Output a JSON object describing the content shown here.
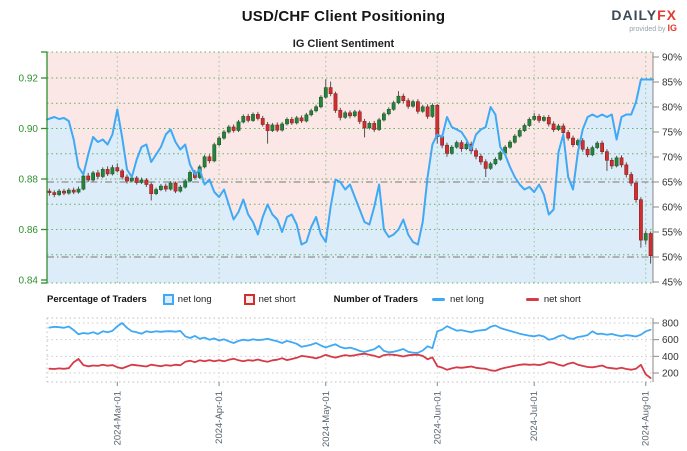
{
  "header": {
    "title": "USD/CHF Client Positioning",
    "subtitle": "IG Client Sentiment"
  },
  "brand": {
    "name_dark": "DAILY",
    "name_accent": "FX",
    "provided_by": "provided by",
    "provider": "IG"
  },
  "legend": {
    "percentage_heading": "Percentage of Traders",
    "pct_net_long": "net long",
    "pct_net_short": "net short",
    "number_heading": "Number of Traders",
    "num_net_long": "net long",
    "num_net_short": "net short"
  },
  "colors": {
    "sentiment_line": "#3fa9f5",
    "fill_above": "#fbe7e6",
    "fill_below": "#dcecf8",
    "candle_up_fill": "#27823c",
    "candle_up_stroke": "#1a5c2a",
    "candle_down_fill": "#d02f2f",
    "candle_down_stroke": "#8c1f1f",
    "wick": "#555555",
    "axis_green": "#2f8f2f",
    "grid_green": "#66b266",
    "grid_green_faint": "#9cc49c",
    "ref_gray": "#8f8f8f",
    "axis_dark": "#888888",
    "label_dark": "#333333",
    "date_label": "#5a6570",
    "count_long": "#3fa9f5",
    "count_short": "#d63a47",
    "mini_grid": "#cccccc",
    "mini_frame": "#bdbdbd"
  },
  "chart_data": {
    "type": "candlestick+line",
    "title": "IG Client Sentiment",
    "legend_position": "bottom",
    "grid": true,
    "x_ticks": [
      {
        "index": 14,
        "label": "2024-Mar-01"
      },
      {
        "index": 35,
        "label": "2024-Apr-01"
      },
      {
        "index": 57,
        "label": "2024-May-01"
      },
      {
        "index": 80,
        "label": "2024-Jun-01"
      },
      {
        "index": 100,
        "label": "2024-Jul-01"
      },
      {
        "index": 123,
        "label": "2024-Aug-01"
      }
    ],
    "price_axis": {
      "side": "left",
      "min": 0.84,
      "max": 0.93,
      "ticks": [
        {
          "value": 0.84,
          "label": "0.84"
        },
        {
          "value": 0.86,
          "label": "0.86"
        },
        {
          "value": 0.88,
          "label": "0.88"
        },
        {
          "value": 0.9,
          "label": "0.90"
        },
        {
          "value": 0.92,
          "label": "0.92"
        }
      ]
    },
    "percent_axis": {
      "side": "right",
      "min": 45,
      "max": 90,
      "ticks": [
        {
          "value": 45,
          "label": "45%"
        },
        {
          "value": 50,
          "label": "50%"
        },
        {
          "value": 55,
          "label": "55%"
        },
        {
          "value": 60,
          "label": "60%"
        },
        {
          "value": 65,
          "label": "65%"
        },
        {
          "value": 70,
          "label": "70%"
        },
        {
          "value": 75,
          "label": "75%"
        },
        {
          "value": 80,
          "label": "80%"
        },
        {
          "value": 85,
          "label": "85%"
        },
        {
          "value": 90,
          "label": "90%"
        }
      ]
    },
    "count_axis": {
      "side": "right",
      "ticks": [
        {
          "value": 200,
          "label": "200"
        },
        {
          "value": 400,
          "label": "400"
        },
        {
          "value": 600,
          "label": "600"
        },
        {
          "value": 800,
          "label": "800"
        }
      ]
    },
    "grid_price_values": [
      0.85,
      0.86,
      0.87,
      0.88,
      0.89,
      0.9,
      0.91,
      0.92
    ],
    "reference_percent_lines": [
      65,
      50
    ],
    "price_ohlc": [
      [
        0.8752,
        0.8762,
        0.8734,
        0.8746
      ],
      [
        0.8746,
        0.8755,
        0.8728,
        0.8738
      ],
      [
        0.8738,
        0.876,
        0.8732,
        0.8752
      ],
      [
        0.8752,
        0.8761,
        0.8736,
        0.8744
      ],
      [
        0.8744,
        0.8764,
        0.8738,
        0.8756
      ],
      [
        0.8756,
        0.8766,
        0.874,
        0.8748
      ],
      [
        0.8748,
        0.877,
        0.8742,
        0.876
      ],
      [
        0.876,
        0.882,
        0.8755,
        0.8812
      ],
      [
        0.8812,
        0.8824,
        0.8788,
        0.8796
      ],
      [
        0.8796,
        0.8832,
        0.879,
        0.8824
      ],
      [
        0.8824,
        0.8836,
        0.88,
        0.881
      ],
      [
        0.881,
        0.8846,
        0.8804,
        0.8838
      ],
      [
        0.8838,
        0.885,
        0.8812,
        0.882
      ],
      [
        0.882,
        0.8856,
        0.8814,
        0.8845
      ],
      [
        0.8845,
        0.8862,
        0.8826,
        0.8832
      ],
      [
        0.8832,
        0.884,
        0.8798,
        0.8808
      ],
      [
        0.8808,
        0.8818,
        0.8782,
        0.8792
      ],
      [
        0.8792,
        0.8812,
        0.8786,
        0.8804
      ],
      [
        0.8804,
        0.8812,
        0.8778,
        0.8786
      ],
      [
        0.8786,
        0.8806,
        0.878,
        0.8796
      ],
      [
        0.8796,
        0.8804,
        0.8768,
        0.8778
      ],
      [
        0.8778,
        0.8786,
        0.8715,
        0.8742
      ],
      [
        0.8742,
        0.8766,
        0.8736,
        0.8758
      ],
      [
        0.8758,
        0.878,
        0.8752,
        0.8772
      ],
      [
        0.8772,
        0.8782,
        0.875,
        0.876
      ],
      [
        0.876,
        0.8792,
        0.8754,
        0.8784
      ],
      [
        0.8784,
        0.879,
        0.8744,
        0.8752
      ],
      [
        0.8752,
        0.8776,
        0.8746,
        0.8768
      ],
      [
        0.8768,
        0.88,
        0.8762,
        0.8792
      ],
      [
        0.8792,
        0.8834,
        0.8786,
        0.8826
      ],
      [
        0.8826,
        0.8836,
        0.8798,
        0.8806
      ],
      [
        0.8806,
        0.8856,
        0.88,
        0.8848
      ],
      [
        0.8848,
        0.8896,
        0.8842,
        0.8888
      ],
      [
        0.8888,
        0.8898,
        0.8862,
        0.8872
      ],
      [
        0.8872,
        0.8944,
        0.8866,
        0.8936
      ],
      [
        0.8936,
        0.897,
        0.893,
        0.8962
      ],
      [
        0.8962,
        0.8994,
        0.8956,
        0.8986
      ],
      [
        0.8986,
        0.9014,
        0.898,
        0.9006
      ],
      [
        0.9006,
        0.9016,
        0.8984,
        0.8992
      ],
      [
        0.8992,
        0.9034,
        0.8986,
        0.9026
      ],
      [
        0.9026,
        0.9056,
        0.902,
        0.9048
      ],
      [
        0.9048,
        0.9058,
        0.9024,
        0.9032
      ],
      [
        0.9032,
        0.9064,
        0.9026,
        0.9056
      ],
      [
        0.9056,
        0.9066,
        0.9032,
        0.904
      ],
      [
        0.904,
        0.905,
        0.9008,
        0.9016
      ],
      [
        0.9016,
        0.9026,
        0.894,
        0.8992
      ],
      [
        0.8992,
        0.9022,
        0.8986,
        0.9014
      ],
      [
        0.9014,
        0.9024,
        0.8986,
        0.8994
      ],
      [
        0.8994,
        0.9026,
        0.8988,
        0.9018
      ],
      [
        0.9018,
        0.9044,
        0.9012,
        0.9036
      ],
      [
        0.9036,
        0.9046,
        0.9014,
        0.9022
      ],
      [
        0.9022,
        0.905,
        0.9016,
        0.9042
      ],
      [
        0.9042,
        0.9052,
        0.9022,
        0.903
      ],
      [
        0.903,
        0.9062,
        0.9024,
        0.9054
      ],
      [
        0.9054,
        0.9078,
        0.9048,
        0.907
      ],
      [
        0.907,
        0.9094,
        0.9064,
        0.9086
      ],
      [
        0.9086,
        0.9132,
        0.908,
        0.9124
      ],
      [
        0.9124,
        0.9195,
        0.9118,
        0.9162
      ],
      [
        0.9162,
        0.9186,
        0.9128,
        0.9138
      ],
      [
        0.9138,
        0.9146,
        0.9062,
        0.9072
      ],
      [
        0.9072,
        0.9082,
        0.9032,
        0.9044
      ],
      [
        0.9044,
        0.907,
        0.9038,
        0.9062
      ],
      [
        0.9062,
        0.9072,
        0.904,
        0.905
      ],
      [
        0.905,
        0.9074,
        0.9044,
        0.9066
      ],
      [
        0.9066,
        0.9074,
        0.9018,
        0.9028
      ],
      [
        0.9028,
        0.9038,
        0.8965,
        0.9002
      ],
      [
        0.9002,
        0.9028,
        0.8996,
        0.902
      ],
      [
        0.902,
        0.903,
        0.8986,
        0.8996
      ],
      [
        0.8996,
        0.9042,
        0.899,
        0.9034
      ],
      [
        0.9034,
        0.9066,
        0.9028,
        0.9058
      ],
      [
        0.9058,
        0.9084,
        0.9052,
        0.9076
      ],
      [
        0.9076,
        0.911,
        0.907,
        0.9102
      ],
      [
        0.9102,
        0.9148,
        0.9096,
        0.9128
      ],
      [
        0.9128,
        0.9138,
        0.91,
        0.911
      ],
      [
        0.911,
        0.912,
        0.9078,
        0.9088
      ],
      [
        0.9088,
        0.9114,
        0.9082,
        0.9106
      ],
      [
        0.9106,
        0.9116,
        0.9058,
        0.9068
      ],
      [
        0.9068,
        0.9094,
        0.9062,
        0.9086
      ],
      [
        0.9086,
        0.9096,
        0.9038,
        0.9048
      ],
      [
        0.9048,
        0.91,
        0.9042,
        0.9092
      ],
      [
        0.9092,
        0.9098,
        0.894,
        0.8968
      ],
      [
        0.8968,
        0.8978,
        0.8922,
        0.8934
      ],
      [
        0.8934,
        0.8944,
        0.8888,
        0.8902
      ],
      [
        0.8902,
        0.8934,
        0.8896,
        0.8926
      ],
      [
        0.8926,
        0.8952,
        0.892,
        0.8944
      ],
      [
        0.8944,
        0.8954,
        0.8908,
        0.892
      ],
      [
        0.892,
        0.8946,
        0.8914,
        0.8938
      ],
      [
        0.8938,
        0.8948,
        0.89,
        0.8912
      ],
      [
        0.8912,
        0.8922,
        0.8878,
        0.889
      ],
      [
        0.889,
        0.89,
        0.8856,
        0.8868
      ],
      [
        0.8868,
        0.8878,
        0.8808,
        0.8842
      ],
      [
        0.8842,
        0.8868,
        0.8836,
        0.886
      ],
      [
        0.886,
        0.8886,
        0.8854,
        0.8878
      ],
      [
        0.8878,
        0.8912,
        0.8872,
        0.8904
      ],
      [
        0.8904,
        0.8934,
        0.8898,
        0.8926
      ],
      [
        0.8926,
        0.8954,
        0.892,
        0.8946
      ],
      [
        0.8946,
        0.8978,
        0.894,
        0.897
      ],
      [
        0.897,
        0.9,
        0.8964,
        0.8992
      ],
      [
        0.8992,
        0.902,
        0.8986,
        0.9012
      ],
      [
        0.9012,
        0.9044,
        0.9006,
        0.9036
      ],
      [
        0.9036,
        0.9062,
        0.903,
        0.9048
      ],
      [
        0.9048,
        0.9058,
        0.9022,
        0.9032
      ],
      [
        0.9032,
        0.9052,
        0.9026,
        0.9044
      ],
      [
        0.9044,
        0.9054,
        0.9008,
        0.9018
      ],
      [
        0.9018,
        0.9028,
        0.8986,
        0.8996
      ],
      [
        0.8996,
        0.9018,
        0.899,
        0.901
      ],
      [
        0.901,
        0.902,
        0.8974,
        0.8984
      ],
      [
        0.8984,
        0.8994,
        0.8952,
        0.8962
      ],
      [
        0.8962,
        0.8972,
        0.8926,
        0.8936
      ],
      [
        0.8936,
        0.896,
        0.893,
        0.8952
      ],
      [
        0.8952,
        0.8962,
        0.8908,
        0.8918
      ],
      [
        0.8918,
        0.8928,
        0.8886,
        0.8896
      ],
      [
        0.8896,
        0.8932,
        0.889,
        0.8924
      ],
      [
        0.8924,
        0.895,
        0.8918,
        0.8942
      ],
      [
        0.8942,
        0.8952,
        0.8898,
        0.8908
      ],
      [
        0.8908,
        0.8918,
        0.8832,
        0.8874
      ],
      [
        0.8874,
        0.8884,
        0.884,
        0.8852
      ],
      [
        0.8852,
        0.8892,
        0.8846,
        0.8884
      ],
      [
        0.8884,
        0.8894,
        0.8846,
        0.8856
      ],
      [
        0.8856,
        0.8866,
        0.8806,
        0.8818
      ],
      [
        0.8818,
        0.8828,
        0.8772,
        0.8784
      ],
      [
        0.8784,
        0.8794,
        0.8706,
        0.8718
      ],
      [
        0.8718,
        0.8728,
        0.8528,
        0.8558
      ],
      [
        0.8558,
        0.8596,
        0.854,
        0.8584
      ],
      [
        0.8584,
        0.8592,
        0.8465,
        0.8496
      ]
    ],
    "net_long_percent": [
      77.5,
      78,
      77.6,
      77.8,
      77.2,
      73.5,
      68,
      66.5,
      70.5,
      74,
      73,
      73.5,
      72.5,
      74.5,
      79.5,
      74,
      67.5,
      66,
      69.5,
      72,
      72.5,
      69,
      70.5,
      72,
      74.5,
      75.5,
      73,
      71.5,
      72.5,
      68.5,
      66.5,
      67.5,
      64.5,
      65.5,
      63,
      62,
      63.5,
      60.5,
      57.5,
      59,
      61.5,
      58.5,
      57,
      54.5,
      58,
      60.5,
      58.5,
      57.5,
      55,
      58,
      58.5,
      56.5,
      52.5,
      53,
      56,
      58,
      54.5,
      53,
      60,
      65.5,
      65,
      63.5,
      64.5,
      62,
      59.5,
      57,
      56.5,
      60,
      64.5,
      55.5,
      54,
      54.5,
      55.5,
      57.5,
      54.5,
      53,
      52.5,
      57,
      66,
      72.5,
      74.5,
      74,
      78,
      76,
      75.5,
      75,
      73.5,
      71.5,
      74.5,
      75.5,
      76,
      80,
      78.5,
      72,
      70.5,
      68,
      66,
      64.5,
      63.5,
      64,
      63,
      64.5,
      62.5,
      58.5,
      59.5,
      71,
      74.5,
      66,
      63.5,
      71,
      75.5,
      78,
      78.5,
      78,
      78.5,
      78,
      78.5,
      73.5,
      78,
      78.5,
      78.5,
      81,
      85.5,
      85.5,
      85.5
    ],
    "traders_net_long": [
      745,
      755,
      750,
      742,
      758,
      715,
      665,
      680,
      672,
      690,
      668,
      700,
      688,
      705,
      760,
      800,
      742,
      700,
      688,
      672,
      700,
      690,
      700,
      695,
      700,
      702,
      696,
      705,
      640,
      620,
      645,
      610,
      625,
      600,
      615,
      590,
      605,
      580,
      560,
      585,
      600,
      590,
      605,
      595,
      600,
      610,
      595,
      580,
      560,
      585,
      570,
      550,
      515,
      525,
      540,
      560,
      530,
      505,
      528,
      545,
      512,
      495,
      505,
      488,
      465,
      452,
      470,
      485,
      525,
      465,
      448,
      455,
      470,
      488,
      455,
      445,
      442,
      470,
      520,
      498,
      700,
      720,
      762,
      735,
      708,
      715,
      700,
      688,
      705,
      712,
      718,
      755,
      770,
      740,
      722,
      705,
      690,
      672,
      660,
      648,
      640,
      652,
      638,
      600,
      612,
      640,
      655,
      620,
      608,
      632,
      640,
      655,
      700,
      668,
      672,
      660,
      668,
      652,
      640,
      655,
      648,
      638,
      660,
      700,
      718
    ],
    "traders_net_short": [
      252,
      248,
      255,
      250,
      258,
      330,
      368,
      295,
      280,
      290,
      285,
      298,
      288,
      295,
      270,
      255,
      278,
      300,
      292,
      285,
      278,
      300,
      290,
      282,
      295,
      288,
      300,
      292,
      335,
      348,
      330,
      352,
      340,
      355,
      342,
      352,
      340,
      358,
      372,
      352,
      342,
      355,
      348,
      362,
      345,
      335,
      352,
      360,
      378,
      355,
      368,
      382,
      405,
      398,
      388,
      375,
      395,
      418,
      398,
      385,
      402,
      415,
      405,
      412,
      425,
      432,
      418,
      408,
      388,
      415,
      422,
      418,
      410,
      398,
      412,
      418,
      420,
      405,
      365,
      388,
      282,
      265,
      238,
      255,
      268,
      262,
      270,
      278,
      262,
      255,
      250,
      232,
      225,
      248,
      262,
      275,
      288,
      298,
      305,
      298,
      302,
      295,
      308,
      330,
      322,
      298,
      285,
      312,
      325,
      300,
      285,
      272,
      268,
      278,
      290,
      265,
      258,
      250,
      262,
      248,
      240,
      252,
      298,
      185,
      140
    ]
  }
}
